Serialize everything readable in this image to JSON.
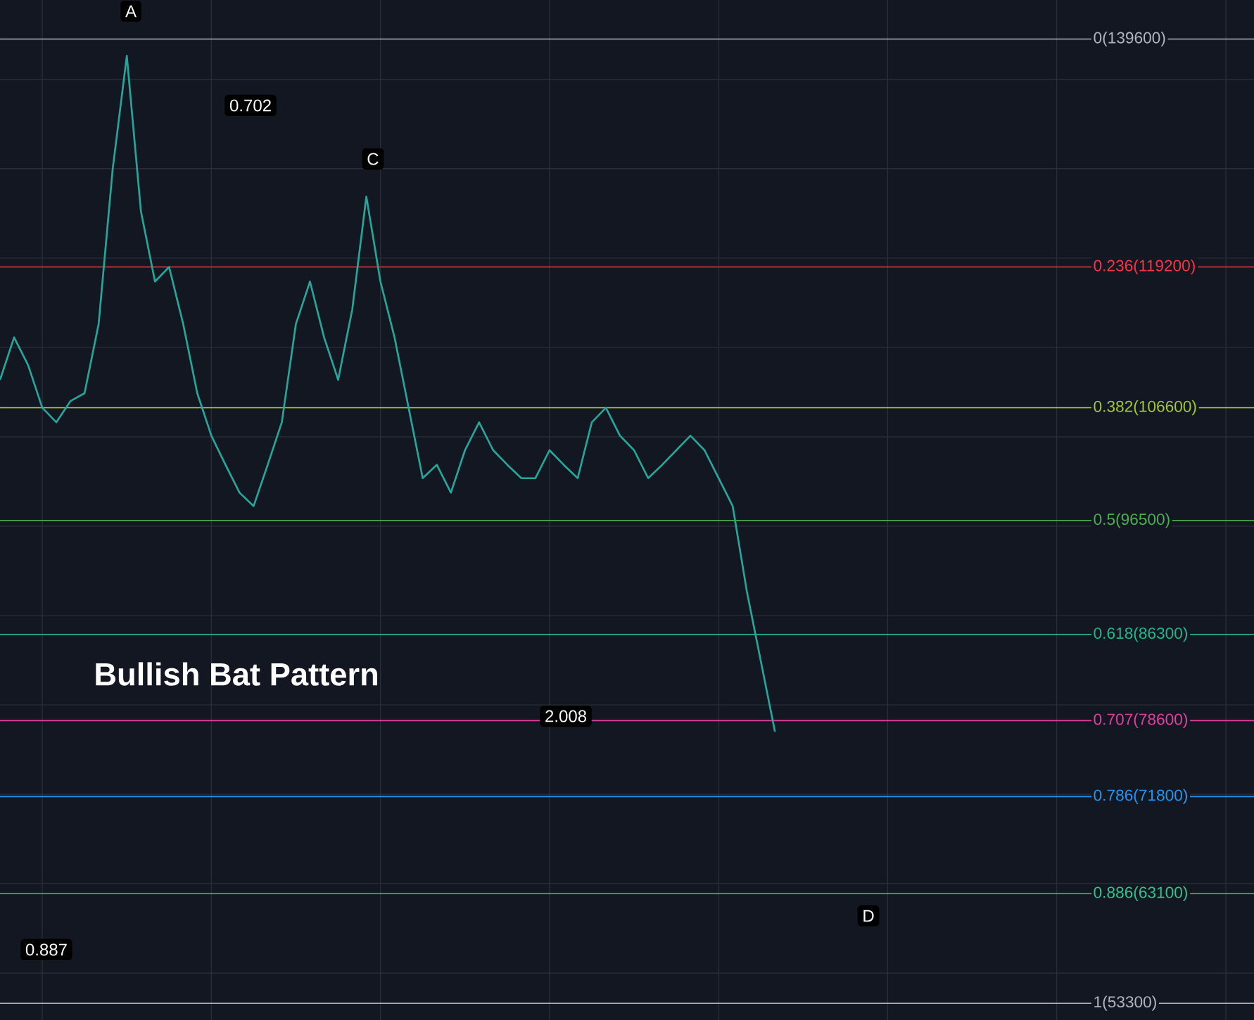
{
  "chart_data": {
    "type": "line",
    "categories": [
      null,
      null,
      null,
      null,
      null,
      null,
      null,
      null,
      null,
      null,
      null,
      null,
      null,
      null,
      null,
      null,
      null,
      null,
      null,
      null,
      null,
      null,
      null,
      null,
      null,
      null,
      null,
      null,
      null,
      null,
      null,
      null,
      null,
      null,
      null,
      null,
      null,
      null,
      null,
      null,
      null,
      null,
      null,
      null,
      null,
      null,
      null,
      null,
      null,
      null,
      null,
      null,
      null,
      null,
      null,
      null,
      null,
      null,
      null,
      null,
      null,
      null,
      null,
      null,
      null,
      null,
      null,
      null,
      null,
      null,
      null,
      null,
      null,
      null,
      null,
      null,
      null,
      null,
      null,
      null,
      null,
      null,
      null,
      null,
      null,
      null,
      null,
      null,
      null
    ],
    "series": [
      {
        "color": "#26a69a",
        "values": [
          109100,
          112900,
          110400,
          106600,
          105300,
          107200,
          107900,
          114100,
          128000,
          138100,
          124200,
          117900,
          119200,
          114100,
          107900,
          104100,
          101500,
          99000,
          97800,
          101500,
          105300,
          114100,
          117900,
          112900,
          109100,
          115400,
          125500,
          117900,
          112900,
          106600,
          100300,
          101500,
          99000,
          102800,
          105300,
          102800,
          101500,
          100300,
          100300,
          102800,
          101500,
          100300,
          105300,
          106600,
          104100,
          102800,
          100300,
          101500,
          102800,
          104100,
          102800,
          100300,
          97800,
          90200,
          83900,
          77600,
          null,
          null,
          null,
          null,
          null,
          null,
          null,
          null,
          null,
          null,
          null,
          null,
          null,
          null,
          null,
          null,
          null,
          null,
          null,
          null,
          null,
          null,
          null,
          null,
          null,
          null,
          null,
          null,
          null,
          null,
          null,
          null,
          null
        ]
      }
    ],
    "ylim": [
      51800,
      143100
    ],
    "yticks": [
      {
        "value": 56000,
        "label": null
      },
      {
        "value": 64000,
        "label": null
      },
      {
        "value": 72000,
        "label": null
      },
      {
        "value": 80000,
        "label": null
      },
      {
        "value": 88000,
        "label": null
      },
      {
        "value": 96000,
        "label": null
      },
      {
        "value": 104000,
        "label": null
      },
      {
        "value": 112000,
        "label": null
      },
      {
        "value": 120000,
        "label": null
      },
      {
        "value": 128000,
        "label": null
      },
      {
        "value": 136000,
        "label": null
      }
    ],
    "grid": true,
    "marker": "none",
    "line_style": "solid",
    "ref_lines": [
      {
        "axis": "y",
        "value": 139600,
        "label": "0(139600)",
        "color": "#b2b5be"
      },
      {
        "axis": "y",
        "value": 119200,
        "label": "0.236(119200)",
        "color": "#f23645"
      },
      {
        "axis": "y",
        "value": 106600,
        "label": "0.382(106600)",
        "color": "#a5c928"
      },
      {
        "axis": "y",
        "value": 96500,
        "label": "0.5(96500)",
        "color": "#4caf50"
      },
      {
        "axis": "y",
        "value": 86300,
        "label": "0.618(86300)",
        "color": "#26b58a"
      },
      {
        "axis": "y",
        "value": 78600,
        "label": "0.707(78600)",
        "color": "#e040a0"
      },
      {
        "axis": "y",
        "value": 71800,
        "label": "0.786(71800)",
        "color": "#2196f3"
      },
      {
        "axis": "y",
        "value": 63100,
        "label": "0.886(63100)",
        "color": "#2ec48a"
      },
      {
        "axis": "y",
        "value": 53300,
        "label": "1(53300)",
        "color": "#b2b5be"
      }
    ],
    "annotations": [
      "A",
      "C",
      "D",
      "0.702",
      "2.008",
      "0.887",
      "Bullish Bat Pattern"
    ]
  }
}
